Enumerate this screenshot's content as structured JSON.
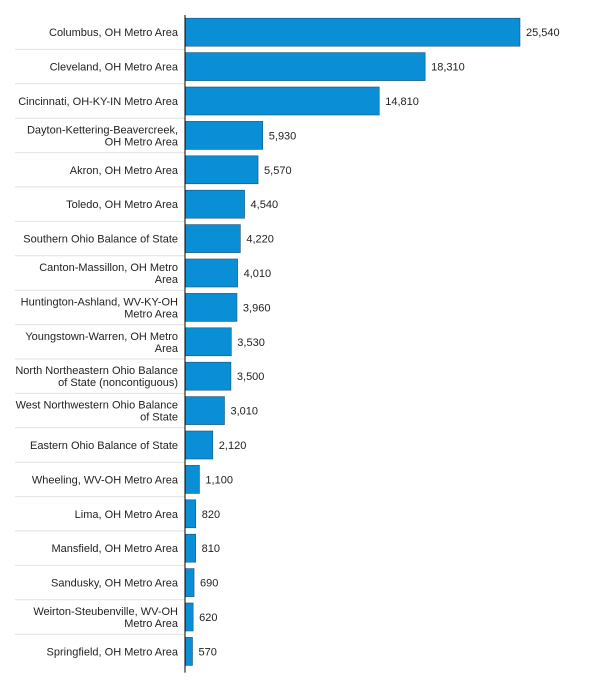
{
  "colors": {
    "bar": "#0a8fd6",
    "bar_stroke": "#1d4f73",
    "separator": "#e2e2e2",
    "axis": "#000000",
    "text": "#222222"
  },
  "chart_data": {
    "type": "bar",
    "orientation": "horizontal",
    "title": "",
    "xlabel": "",
    "ylabel": "",
    "xlim": [
      0,
      26000
    ],
    "grid": false,
    "legend": "none",
    "categories": [
      "Columbus, OH Metro Area",
      "Cleveland, OH Metro Area",
      "Cincinnati, OH-KY-IN Metro Area",
      "Dayton-Kettering-Beavercreek, OH Metro Area",
      "Akron, OH Metro Area",
      "Toledo, OH Metro Area",
      "Southern Ohio Balance of State",
      "Canton-Massillon, OH Metro Area",
      "Huntington-Ashland, WV-KY-OH Metro Area",
      "Youngstown-Warren, OH Metro Area",
      "North Northeastern Ohio Balance of State (noncontiguous)",
      "West Northwestern Ohio Balance of State",
      "Eastern Ohio Balance of State",
      "Wheeling, WV-OH Metro Area",
      "Lima, OH Metro Area",
      "Mansfield, OH Metro Area",
      "Sandusky, OH Metro Area",
      "Weirton-Steubenville, WV-OH Metro Area",
      "Springfield, OH Metro Area"
    ],
    "label_lines": [
      [
        "Columbus, OH Metro Area"
      ],
      [
        "Cleveland, OH Metro Area"
      ],
      [
        "Cincinnati, OH-KY-IN Metro Area"
      ],
      [
        "Dayton-Kettering-Beavercreek,",
        "OH Metro Area"
      ],
      [
        "Akron, OH Metro Area"
      ],
      [
        "Toledo, OH Metro Area"
      ],
      [
        "Southern Ohio Balance of State"
      ],
      [
        "Canton-Massillon, OH Metro",
        "Area"
      ],
      [
        "Huntington-Ashland, WV-KY-OH",
        "Metro Area"
      ],
      [
        "Youngstown-Warren, OH Metro",
        "Area"
      ],
      [
        "North Northeastern Ohio Balance",
        "of State (noncontiguous)"
      ],
      [
        "West Northwestern Ohio Balance",
        "of State"
      ],
      [
        "Eastern Ohio Balance of State"
      ],
      [
        "Wheeling, WV-OH Metro Area"
      ],
      [
        "Lima, OH Metro Area"
      ],
      [
        "Mansfield, OH Metro Area"
      ],
      [
        "Sandusky, OH Metro Area"
      ],
      [
        "Weirton-Steubenville, WV-OH",
        "Metro Area"
      ],
      [
        "Springfield, OH Metro Area"
      ]
    ],
    "values": [
      25540,
      18310,
      14810,
      5930,
      5570,
      4540,
      4220,
      4010,
      3960,
      3530,
      3500,
      3010,
      2120,
      1100,
      820,
      810,
      690,
      620,
      570
    ],
    "value_labels": [
      "25,540",
      "18,310",
      "14,810",
      "5,930",
      "5,570",
      "4,540",
      "4,220",
      "4,010",
      "3,960",
      "3,530",
      "3,500",
      "3,010",
      "2,120",
      "1,100",
      "820",
      "810",
      "690",
      "620",
      "570"
    ]
  }
}
